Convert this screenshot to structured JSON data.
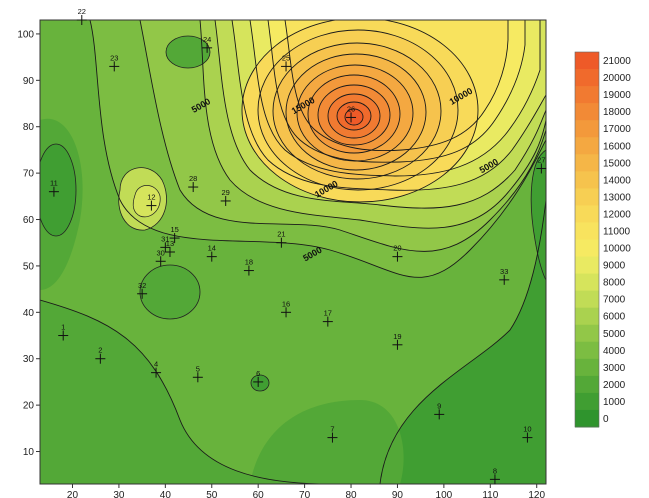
{
  "chart_data": {
    "type": "contour",
    "title": "",
    "xlabel": "",
    "ylabel": "",
    "xlim": [
      13,
      122
    ],
    "ylim": [
      3,
      103
    ],
    "x_ticks": [
      "20",
      "30",
      "40",
      "50",
      "60",
      "70",
      "80",
      "90",
      "100",
      "110",
      "120"
    ],
    "y_ticks": [
      "10",
      "20",
      "30",
      "40",
      "50",
      "60",
      "70",
      "80",
      "90",
      "100"
    ],
    "legend": {
      "placement": "right",
      "levels": [
        "21000",
        "20000",
        "19000",
        "18000",
        "17000",
        "16000",
        "15000",
        "14000",
        "13000",
        "12000",
        "11000",
        "10000",
        "9000",
        "8000",
        "7000",
        "6000",
        "5000",
        "4000",
        "3000",
        "2000",
        "1000",
        "0"
      ],
      "colors": [
        "#ee5a28",
        "#f06a2c",
        "#f17a31",
        "#f28a36",
        "#f3993b",
        "#f4a841",
        "#f5b647",
        "#f6c34d",
        "#f7cf53",
        "#f8da59",
        "#f8e35e",
        "#f6ea62",
        "#e9ea62",
        "#d6e45c",
        "#c1dc56",
        "#aad24f",
        "#92c748",
        "#7cbd42",
        "#68b33c",
        "#53a837",
        "#409e32",
        "#2f942d"
      ]
    },
    "contour_labels": [
      {
        "text": "5000",
        "x": 48,
        "y": 84
      },
      {
        "text": "5000",
        "x": 72,
        "y": 52
      },
      {
        "text": "5000",
        "x": 110,
        "y": 71
      },
      {
        "text": "10000",
        "x": 75,
        "y": 66
      },
      {
        "text": "10000",
        "x": 104,
        "y": 86
      },
      {
        "text": "15000",
        "x": 70,
        "y": 84
      }
    ],
    "wells": [
      {
        "id": "1",
        "x": 18,
        "y": 35
      },
      {
        "id": "2",
        "x": 26,
        "y": 30
      },
      {
        "id": "4",
        "x": 38,
        "y": 27
      },
      {
        "id": "5",
        "x": 47,
        "y": 26
      },
      {
        "id": "6",
        "x": 60,
        "y": 25
      },
      {
        "id": "7",
        "x": 76,
        "y": 13
      },
      {
        "id": "8",
        "x": 111,
        "y": 4
      },
      {
        "id": "9",
        "x": 99,
        "y": 18
      },
      {
        "id": "10",
        "x": 118,
        "y": 13
      },
      {
        "id": "11",
        "x": 16,
        "y": 66
      },
      {
        "id": "12",
        "x": 37,
        "y": 63
      },
      {
        "id": "13",
        "x": 41,
        "y": 53
      },
      {
        "id": "14",
        "x": 50,
        "y": 52
      },
      {
        "id": "15",
        "x": 42,
        "y": 56
      },
      {
        "id": "16",
        "x": 66,
        "y": 40
      },
      {
        "id": "17",
        "x": 75,
        "y": 38
      },
      {
        "id": "18",
        "x": 58,
        "y": 49
      },
      {
        "id": "19",
        "x": 90,
        "y": 33
      },
      {
        "id": "20",
        "x": 90,
        "y": 52
      },
      {
        "id": "21",
        "x": 65,
        "y": 55
      },
      {
        "id": "22",
        "x": 22,
        "y": 103
      },
      {
        "id": "23",
        "x": 29,
        "y": 93
      },
      {
        "id": "24",
        "x": 49,
        "y": 97
      },
      {
        "id": "25",
        "x": 66,
        "y": 93
      },
      {
        "id": "26",
        "x": 80,
        "y": 82
      },
      {
        "id": "27",
        "x": 121,
        "y": 71
      },
      {
        "id": "28",
        "x": 46,
        "y": 67
      },
      {
        "id": "29",
        "x": 53,
        "y": 64
      },
      {
        "id": "30",
        "x": 39,
        "y": 51
      },
      {
        "id": "31",
        "x": 40,
        "y": 54
      },
      {
        "id": "32",
        "x": 35,
        "y": 44
      },
      {
        "id": "33",
        "x": 113,
        "y": 47
      }
    ]
  }
}
